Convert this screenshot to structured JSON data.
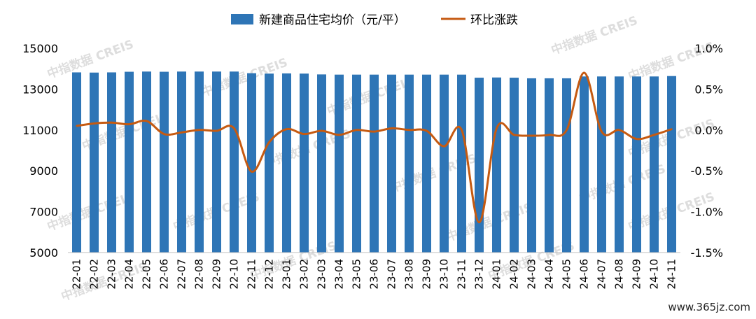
{
  "chart_data": {
    "type": "bar",
    "categories": [
      "22-01",
      "22-02",
      "22-03",
      "22-04",
      "22-05",
      "22-06",
      "22-07",
      "22-08",
      "22-09",
      "22-10",
      "22-11",
      "22-12",
      "23-01",
      "23-02",
      "23-03",
      "23-04",
      "23-05",
      "23-06",
      "23-07",
      "23-08",
      "23-09",
      "23-10",
      "23-11",
      "23-12",
      "24-01",
      "24-02",
      "24-03",
      "24-04",
      "24-05",
      "24-06",
      "24-07",
      "24-08",
      "24-09",
      "24-10",
      "24-11"
    ],
    "series": [
      {
        "name": "新建商品住宅均价（元/平）",
        "type": "bar",
        "axis": "left",
        "color": "#2e75b6",
        "values": [
          13820,
          13810,
          13820,
          13850,
          13860,
          13850,
          13860,
          13860,
          13860,
          13860,
          13780,
          13760,
          13770,
          13760,
          13720,
          13710,
          13710,
          13710,
          13710,
          13710,
          13710,
          13710,
          13710,
          13560,
          13570,
          13560,
          13530,
          13530,
          13530,
          13620,
          13620,
          13620,
          13620,
          13620,
          13640
        ]
      },
      {
        "name": "环比涨跌",
        "type": "line",
        "axis": "right",
        "color": "#c55a11",
        "values": [
          0.05,
          0.08,
          0.09,
          0.07,
          0.11,
          -0.05,
          -0.03,
          0.0,
          -0.01,
          0.02,
          -0.51,
          -0.15,
          0.01,
          -0.05,
          -0.01,
          -0.06,
          0.0,
          -0.02,
          0.02,
          0.0,
          -0.01,
          -0.2,
          0.0,
          -1.13,
          0.02,
          -0.06,
          -0.07,
          -0.06,
          0.0,
          0.7,
          -0.02,
          0.0,
          -0.11,
          -0.06,
          0.01
        ]
      }
    ],
    "y_left": {
      "ylim": [
        5000,
        15000
      ],
      "ticks": [
        "15000",
        "13000",
        "11000",
        "9000",
        "7000",
        "5000"
      ]
    },
    "y_right": {
      "ylim": [
        -1.5,
        1.0
      ],
      "ticks": [
        "1.0%",
        "0.5%",
        "0.0%",
        "-0.5%",
        "-1.0%",
        "-1.5%"
      ]
    },
    "legend": {
      "placement": "top-center"
    },
    "grid": false
  },
  "watermark": {
    "cn": "中指数据",
    "en": "CREIS"
  },
  "footer": {
    "site": "www.365jz.com"
  }
}
